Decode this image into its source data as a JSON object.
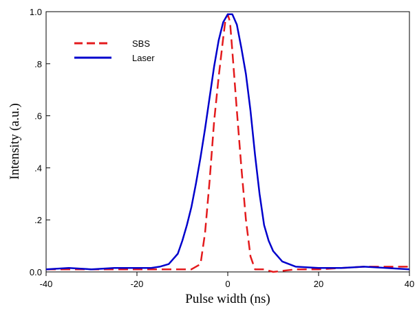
{
  "chart_data": {
    "type": "line",
    "xlabel": "Pulse width (ns)",
    "ylabel": "Intensity (a.u.)",
    "xlim": [
      -40,
      40
    ],
    "ylim": [
      0,
      1.0
    ],
    "x_ticks": [
      -40,
      -20,
      0,
      20,
      40
    ],
    "x_tick_labels": [
      "-40",
      "-20",
      "0",
      "20",
      "40"
    ],
    "y_ticks": [
      0,
      0.2,
      0.4,
      0.6,
      0.8,
      1.0
    ],
    "y_tick_labels": [
      "0.0",
      ".2",
      ".4",
      ".6",
      ".8",
      "1.0"
    ],
    "grid": false,
    "legend_position": "top-left",
    "series": [
      {
        "name": "SBS",
        "color": "#e31a1c",
        "style": "dashed",
        "x": [
          -40,
          -30,
          -20,
          -15,
          -10,
          -8,
          -6,
          -5,
          -4,
          -3,
          -2,
          -1,
          -0.5,
          0,
          0.5,
          1,
          2,
          3,
          4,
          5,
          6,
          8,
          10,
          15,
          20,
          30,
          40
        ],
        "y": [
          0.01,
          0.01,
          0.01,
          0.01,
          0.01,
          0.01,
          0.03,
          0.15,
          0.35,
          0.58,
          0.75,
          0.9,
          0.97,
          0.99,
          0.96,
          0.85,
          0.62,
          0.4,
          0.2,
          0.06,
          0.01,
          0.01,
          0.0,
          0.01,
          0.01,
          0.02,
          0.02
        ]
      },
      {
        "name": "Laser",
        "color": "#0000cc",
        "style": "solid",
        "x": [
          -40,
          -35,
          -30,
          -25,
          -20,
          -17,
          -15,
          -13,
          -12,
          -11,
          -10,
          -9,
          -8,
          -7,
          -6,
          -5,
          -4,
          -3,
          -2,
          -1,
          0,
          1,
          2,
          3,
          4,
          5,
          6,
          7,
          8,
          9,
          10,
          12,
          15,
          20,
          25,
          30,
          35,
          40
        ],
        "y": [
          0.01,
          0.015,
          0.01,
          0.015,
          0.015,
          0.015,
          0.02,
          0.03,
          0.05,
          0.07,
          0.12,
          0.18,
          0.25,
          0.34,
          0.44,
          0.55,
          0.67,
          0.79,
          0.89,
          0.96,
          0.99,
          0.99,
          0.95,
          0.86,
          0.76,
          0.62,
          0.45,
          0.3,
          0.18,
          0.12,
          0.08,
          0.04,
          0.02,
          0.015,
          0.015,
          0.02,
          0.015,
          0.01
        ]
      }
    ]
  }
}
